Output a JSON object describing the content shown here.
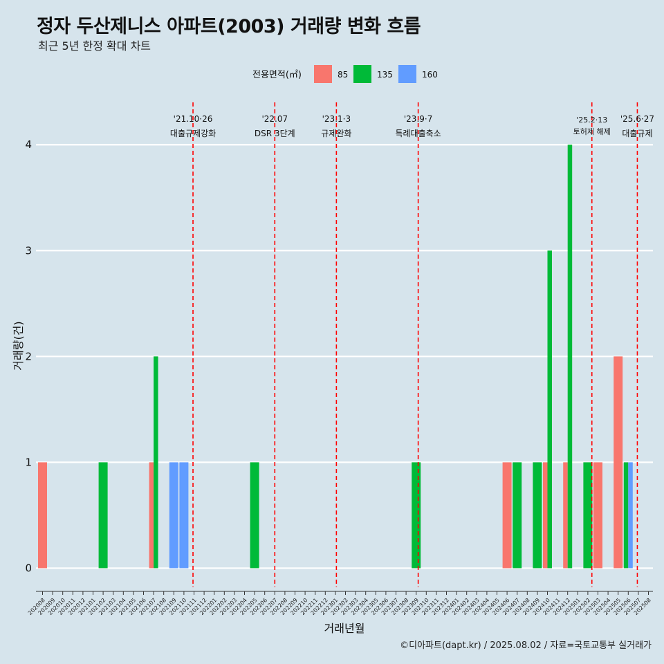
{
  "header": {
    "title": "정자 두산제니스 아파트(2003) 거래량 변화 흐름",
    "subtitle": "최근 5년 한정 확대 차트"
  },
  "caption": "©디아파트(dapt.kr) / 2025.08.02 / 자료=국토교통부 실거래가",
  "colors": {
    "background": "#d6e4ec",
    "85": "#f8766d",
    "135": "#00ba38",
    "160": "#619cff",
    "event_line": "#ff0000",
    "grid": "#ffffff"
  },
  "chart_data": {
    "type": "bar",
    "xlabel": "거래년월",
    "ylabel": "거래량(건)",
    "ylim": [
      -0.18,
      4.4
    ],
    "yticks": [
      0,
      1,
      2,
      3,
      4
    ],
    "grid": true,
    "legend": {
      "title": "전용면적(㎡)",
      "position": "top",
      "entries": [
        "85",
        "135",
        "160"
      ]
    },
    "categories": [
      "202008",
      "202009",
      "202010",
      "202011",
      "202012",
      "202101",
      "202102",
      "202103",
      "202104",
      "202105",
      "202106",
      "202107",
      "202108",
      "202109",
      "202110",
      "202111",
      "202112",
      "202201",
      "202202",
      "202203",
      "202204",
      "202205",
      "202206",
      "202207",
      "202208",
      "202209",
      "202210",
      "202211",
      "202212",
      "202301",
      "202302",
      "202303",
      "202304",
      "202305",
      "202306",
      "202307",
      "202308",
      "202309",
      "202310",
      "202311",
      "202312",
      "202401",
      "202402",
      "202403",
      "202404",
      "202405",
      "202406",
      "202407",
      "202408",
      "202409",
      "202410",
      "202411",
      "202412",
      "202501",
      "202502",
      "202503",
      "202504",
      "202505",
      "202506",
      "202507",
      "202508"
    ],
    "series": [
      {
        "name": "85",
        "points": [
          [
            "202008",
            1
          ],
          [
            "202107",
            1
          ],
          [
            "202406",
            1
          ],
          [
            "202410",
            1
          ],
          [
            "202412",
            1
          ],
          [
            "202503",
            1
          ],
          [
            "202505",
            2
          ]
        ]
      },
      {
        "name": "135",
        "points": [
          [
            "202102",
            1
          ],
          [
            "202107",
            2
          ],
          [
            "202205",
            1
          ],
          [
            "202309",
            1
          ],
          [
            "202407",
            1
          ],
          [
            "202409",
            1
          ],
          [
            "202410",
            3
          ],
          [
            "202412",
            4
          ],
          [
            "202502",
            1
          ],
          [
            "202506",
            1
          ]
        ]
      },
      {
        "name": "160",
        "points": [
          [
            "202109",
            1
          ],
          [
            "202110",
            1
          ],
          [
            "202506",
            1
          ]
        ]
      }
    ],
    "events": [
      {
        "date": "'21.10·26",
        "label": "대출규제강화",
        "month": "202110",
        "offset": 0.9
      },
      {
        "date": "'22.07",
        "label": "DSR 3단계",
        "month": "202207",
        "offset": 0.0
      },
      {
        "date": "'23.1·3",
        "label": "규제완화",
        "month": "202301",
        "offset": 0.1
      },
      {
        "date": "'23.9·7",
        "label": "특례대출축소",
        "month": "202309",
        "offset": 0.2
      },
      {
        "date": "'25.2·13",
        "label": "토허제 해제",
        "month": "202502",
        "offset": 0.4,
        "small": true
      },
      {
        "date": "'25.6·27",
        "label": "대출규제",
        "month": "202506",
        "offset": 0.9
      }
    ]
  }
}
